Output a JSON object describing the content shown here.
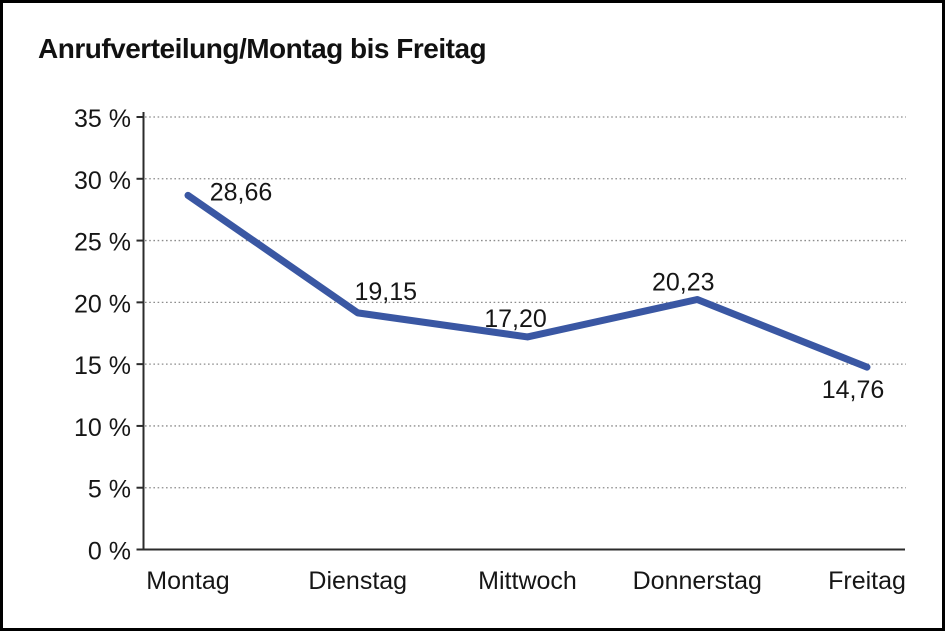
{
  "window": {
    "background": "#ffffff",
    "frame_border_color": "#000000"
  },
  "chart_data": {
    "type": "line",
    "title": "Anrufverteilung/Montag bis Freitag",
    "categories": [
      "Montag",
      "Dienstag",
      "Mittwoch",
      "Donnerstag",
      "Freitag"
    ],
    "series": [
      {
        "name": "Anrufverteilung",
        "values": [
          28.66,
          19.15,
          17.2,
          20.23,
          14.76
        ],
        "value_labels": [
          "28,66",
          "19,15",
          "17,20",
          "20,23",
          "14,76"
        ],
        "color": "#3A57A3"
      }
    ],
    "xlabel": "",
    "ylabel": "",
    "ylim": [
      0,
      35
    ],
    "y_tick_step": 5,
    "y_tick_labels": [
      "0 %",
      "5 %",
      "10 %",
      "15 %",
      "20 %",
      "25 %",
      "30 %",
      "35 %"
    ],
    "grid": "horizontal dotted gridlines",
    "gridline_color": "#8c8c8c",
    "axis_color": "#2b2b2b",
    "legend": "none"
  }
}
